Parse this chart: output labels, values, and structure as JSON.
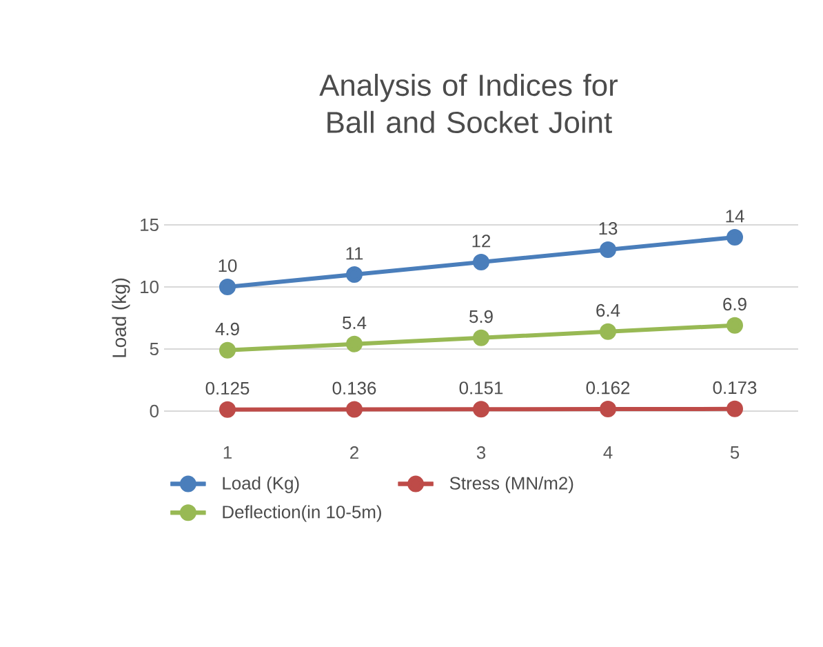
{
  "chart_data": {
    "type": "line",
    "title": "Analysis of Indices for Ball and Socket Joint",
    "ylabel": "Load (kg)",
    "categories": [
      "1",
      "2",
      "3",
      "4",
      "5"
    ],
    "series": [
      {
        "name": "Load (Kg)",
        "color": "#4a7ebb",
        "values": [
          10,
          11,
          12,
          13,
          14
        ]
      },
      {
        "name": "Stress (MN/m2)",
        "color": "#be4b48",
        "values": [
          0.125,
          0.136,
          0.151,
          0.162,
          0.173
        ]
      },
      {
        "name": "Deflection(in 10-5m)",
        "color": "#98b954",
        "values": [
          4.9,
          5.4,
          5.9,
          6.4,
          6.9
        ]
      }
    ],
    "ylim": [
      0,
      15
    ],
    "yticks": [
      0,
      5,
      10,
      15
    ],
    "grid": "y",
    "legend": "bottom",
    "marker": "circle",
    "line_style": "solid",
    "data_labels": true
  }
}
